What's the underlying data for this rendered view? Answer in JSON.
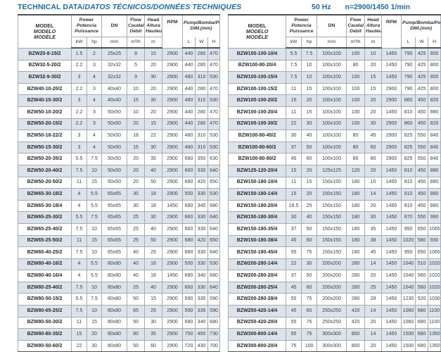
{
  "page": {
    "title_part1": "TECHNICAL DATA/",
    "title_part2": "DATOS TÉCNICOS/DONNÉES TECHNIQUES",
    "frequency": "50 Hz",
    "speed": "n=2900/1450 1/min"
  },
  "colors": {
    "accent_blue": "#1a6cb5",
    "row_shade": "#dde3ea",
    "heavy_rule": "#4b5158",
    "light_rule": "#a5abb2"
  },
  "header": {
    "model_lines": [
      "MODEL",
      "MODELO",
      "MODÈLE"
    ],
    "power_lines": [
      "Power",
      "Potencia",
      "Puissance"
    ],
    "power_units": [
      "kW",
      "hp"
    ],
    "dn_label": "DN",
    "dn_unit": "mm",
    "flow_lines": [
      "Flow",
      "Caudal",
      "Débit"
    ],
    "flow_unit": "m³/h",
    "head_lines": [
      "Head",
      "Altura",
      "Hauteur"
    ],
    "head_unit": "m",
    "rpm_label": "RPM",
    "pump_dim_lines": [
      "Pump/Bomba/Pompe",
      "DIM.(mm)"
    ],
    "dim_units": [
      "L",
      "W",
      "H"
    ]
  },
  "tables": {
    "left": {
      "rows": [
        [
          "BZW25-8-15/2",
          "1.5",
          "2",
          "25x25",
          "8",
          "15",
          "2900",
          "440",
          "280",
          "470"
        ],
        [
          "BZW32-5-20/2",
          "2.2",
          "3",
          "32x32",
          "5",
          "20",
          "2900",
          "440",
          "280",
          "470"
        ],
        [
          "BZW32-9-30/2",
          "3",
          "4",
          "32x32",
          "9",
          "30",
          "2900",
          "480",
          "310",
          "530"
        ],
        [
          "BZW40-10-20/2",
          "2.2",
          "3",
          "40x40",
          "10",
          "20",
          "2900",
          "440",
          "280",
          "470"
        ],
        [
          "BZW40-15-30/2",
          "3",
          "4",
          "40x40",
          "15",
          "30",
          "2900",
          "480",
          "310",
          "530"
        ],
        [
          "BZW50-10-20/2",
          "2.2",
          "3",
          "50x50",
          "10",
          "20",
          "2900",
          "440",
          "280",
          "470"
        ],
        [
          "BZW50-20-15/2",
          "2.2",
          "3",
          "50x50",
          "20",
          "15",
          "2900",
          "440",
          "280",
          "470"
        ],
        [
          "BZW50-18-22/2",
          "3",
          "4",
          "50x50",
          "18",
          "22",
          "2900",
          "480",
          "310",
          "530"
        ],
        [
          "BZW50-15-30/2",
          "3",
          "4",
          "50x50",
          "15",
          "30",
          "2900",
          "480",
          "310",
          "530"
        ],
        [
          "BZW50-20-35/2",
          "5.5",
          "7.5",
          "50x50",
          "20",
          "35",
          "2900",
          "680",
          "350",
          "630"
        ],
        [
          "BZW50-20-40/2",
          "7.5",
          "10",
          "50x50",
          "20",
          "40",
          "2900",
          "660",
          "330",
          "640"
        ],
        [
          "BZW50-20-50/2",
          "11",
          "15",
          "50x50",
          "20",
          "50",
          "2900",
          "680",
          "420",
          "650"
        ],
        [
          "BZW65-30-18/2",
          "4",
          "5.5",
          "65x65",
          "30",
          "18",
          "2900",
          "500",
          "330",
          "530"
        ],
        [
          "BZW65-30-18/4",
          "4",
          "5.5",
          "65x65",
          "30",
          "18",
          "1450",
          "680",
          "340",
          "680"
        ],
        [
          "BZW65-25-30/2",
          "5.5",
          "7.5",
          "65x65",
          "25",
          "30",
          "2900",
          "660",
          "330",
          "640"
        ],
        [
          "BZW65-25-40/2",
          "7.5",
          "10",
          "65x65",
          "25",
          "40",
          "2900",
          "660",
          "330",
          "640"
        ],
        [
          "BZW65-25-50/2",
          "11",
          "15",
          "65x65",
          "25",
          "50",
          "2900",
          "680",
          "420",
          "650"
        ],
        [
          "BZW65-40-25/2",
          "7.5",
          "10",
          "65x65",
          "40",
          "25",
          "2900",
          "660",
          "330",
          "640"
        ],
        [
          "BZW80-40-16/2",
          "4",
          "5.5",
          "80x80",
          "40",
          "16",
          "2900",
          "500",
          "330",
          "530"
        ],
        [
          "BZW80-40-16/4",
          "4",
          "5.5",
          "80x80",
          "40",
          "16",
          "1450",
          "680",
          "340",
          "680"
        ],
        [
          "BZW80-25-40/2",
          "7.5",
          "10",
          "80x80",
          "25",
          "40",
          "2900",
          "660",
          "330",
          "640"
        ],
        [
          "BZW80-50-15/2",
          "5.5",
          "7.5",
          "80x80",
          "50",
          "15",
          "2900",
          "590",
          "335",
          "590"
        ],
        [
          "BZW80-65-25/2",
          "7.5",
          "10",
          "80x80",
          "65",
          "25",
          "2900",
          "590",
          "335",
          "590"
        ],
        [
          "BZW80-50-30/2",
          "11",
          "15",
          "80x80",
          "50",
          "30",
          "2900",
          "680",
          "340",
          "680"
        ],
        [
          "BZW80-80-35/2",
          "15",
          "20",
          "80x80",
          "80",
          "35",
          "2900",
          "750",
          "450",
          "730"
        ],
        [
          "BZW80-50-60/2",
          "22",
          "30",
          "80x80",
          "50",
          "60",
          "2900",
          "720",
          "430",
          "700"
        ]
      ]
    },
    "right": {
      "rows": [
        [
          "BZW100-100-10/4",
          "5.5",
          "7.5",
          "100x100",
          "100",
          "10",
          "1450",
          "790",
          "425",
          "800"
        ],
        [
          "BZW100-80-20/4",
          "7.5",
          "10",
          "100x100",
          "80",
          "20",
          "1450",
          "790",
          "425",
          "800"
        ],
        [
          "BZW100-100-15/4",
          "7.5",
          "10",
          "100x100",
          "100",
          "15",
          "1450",
          "790",
          "425",
          "800"
        ],
        [
          "BZW100-100-15/2",
          "11",
          "15",
          "100x100",
          "100",
          "15",
          "2900",
          "790",
          "425",
          "800"
        ],
        [
          "BZW100-100-20/2",
          "15",
          "20",
          "100x100",
          "100",
          "20",
          "2900",
          "860",
          "450",
          "820"
        ],
        [
          "BZW100-100-20/4",
          "11",
          "15",
          "100x100",
          "100",
          "20",
          "1450",
          "810",
          "450",
          "880"
        ],
        [
          "BZW100-100-30/2",
          "22",
          "30",
          "100x100",
          "100",
          "30",
          "2900",
          "860",
          "450",
          "820"
        ],
        [
          "BZW100-80-45/2",
          "30",
          "40",
          "100x100",
          "80",
          "45",
          "2900",
          "825",
          "550",
          "840"
        ],
        [
          "BZW100-80-60/2",
          "37",
          "50",
          "100x100",
          "80",
          "60",
          "2900",
          "825",
          "550",
          "840"
        ],
        [
          "BZW100-80-80/2",
          "45",
          "60",
          "100x100",
          "80",
          "80",
          "2900",
          "825",
          "550",
          "840"
        ],
        [
          "BZW125-120-20/4",
          "15",
          "20",
          "125x125",
          "120",
          "20",
          "1450",
          "810",
          "450",
          "880"
        ],
        [
          "BZW150-180-10/4",
          "11",
          "15",
          "150x150",
          "180",
          "10",
          "1450",
          "810",
          "450",
          "880"
        ],
        [
          "BZW150-180-14/4",
          "15",
          "20",
          "150x150",
          "180",
          "14",
          "1450",
          "810",
          "450",
          "880"
        ],
        [
          "BZW150-180-20/4",
          "18.5",
          "25",
          "150x150",
          "180",
          "20",
          "1450",
          "810",
          "450",
          "880"
        ],
        [
          "BZW150-180-30/4",
          "30",
          "40",
          "150x150",
          "180",
          "30",
          "1450",
          "870",
          "550",
          "990"
        ],
        [
          "BZW150-180-35/4",
          "37",
          "50",
          "150x150",
          "180",
          "35",
          "1450",
          "950",
          "650",
          "1065"
        ],
        [
          "BZW150-180-38/4",
          "45",
          "60",
          "150x150",
          "180",
          "38",
          "1450",
          "1020",
          "580",
          "930"
        ],
        [
          "BZW150-180-45/4",
          "55",
          "75",
          "150x150",
          "180",
          "45",
          "1450",
          "950",
          "650",
          "1065"
        ],
        [
          "BZW200-280-14/4",
          "22",
          "30",
          "200x200",
          "280",
          "14",
          "1450",
          "1040",
          "510",
          "1020"
        ],
        [
          "BZW200-280-20/4",
          "37",
          "50",
          "200x200",
          "280",
          "20",
          "1450",
          "1040",
          "560",
          "1020"
        ],
        [
          "BZW200-280-25/4",
          "45",
          "60",
          "200x200",
          "280",
          "25",
          "1450",
          "1040",
          "560",
          "1020"
        ],
        [
          "BZW200-280-28/4",
          "55",
          "75",
          "200x200",
          "280",
          "28",
          "1450",
          "1230",
          "520",
          "1030"
        ],
        [
          "BZW250-420-14/4",
          "45",
          "60",
          "250x250",
          "420",
          "14",
          "1450",
          "1060",
          "680",
          "1100"
        ],
        [
          "BZW250-420-20/4",
          "55",
          "75",
          "250x250",
          "420",
          "20",
          "1450",
          "1060",
          "680",
          "1100"
        ],
        [
          "BZW300-800-14/4",
          "55",
          "75",
          "300x300",
          "800",
          "14",
          "1450",
          "1500",
          "680",
          "1350"
        ],
        [
          "BZW300-800-20/4",
          "75",
          "100",
          "300x300",
          "800",
          "20",
          "1450",
          "1500",
          "680",
          "1350"
        ]
      ]
    }
  }
}
